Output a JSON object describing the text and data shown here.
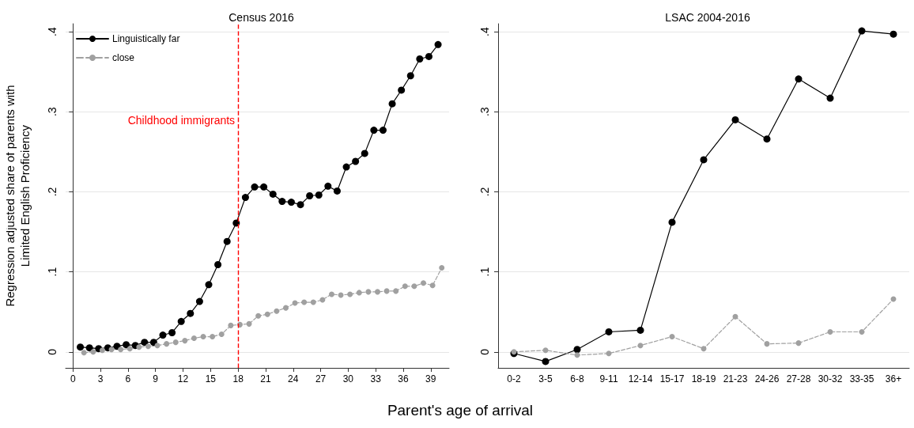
{
  "chart_data": [
    {
      "type": "line",
      "title": "Census 2016",
      "ylabel": "Regression adjusted share of parents with\nLimited English Proficiency",
      "xlabel": "Parent's age of arrival",
      "series": [
        {
          "name": "Linguistically far",
          "color": "#000000",
          "line_style": "solid",
          "x": [
            0.8,
            1.8,
            2.8,
            3.8,
            4.8,
            5.8,
            6.8,
            7.8,
            8.8,
            9.8,
            10.8,
            11.8,
            12.8,
            13.8,
            14.8,
            15.8,
            16.8,
            17.8,
            18.8,
            19.8,
            20.8,
            21.8,
            22.8,
            23.8,
            24.8,
            25.8,
            26.8,
            27.8,
            28.8,
            29.8,
            30.8,
            31.8,
            32.8,
            33.8,
            34.8,
            35.8,
            36.8,
            37.8,
            38.8,
            39.8
          ],
          "values": [
            0.006,
            0.005,
            0.004,
            0.005,
            0.007,
            0.009,
            0.008,
            0.012,
            0.012,
            0.021,
            0.024,
            0.038,
            0.048,
            0.063,
            0.084,
            0.109,
            0.138,
            0.161,
            0.193,
            0.206,
            0.206,
            0.197,
            0.188,
            0.187,
            0.184,
            0.195,
            0.196,
            0.207,
            0.201,
            0.231,
            0.238,
            0.248,
            0.277,
            0.277,
            0.31,
            0.327,
            0.345,
            0.366,
            0.369,
            0.384
          ]
        },
        {
          "name": "close",
          "color": "#a0a0a0",
          "line_style": "dashed",
          "x": [
            1.2,
            2.2,
            3.2,
            4.2,
            5.2,
            6.2,
            7.2,
            8.2,
            9.2,
            10.2,
            11.2,
            12.2,
            13.2,
            14.2,
            15.2,
            16.2,
            17.2,
            18.2,
            19.2,
            20.2,
            21.2,
            22.2,
            23.2,
            24.2,
            25.2,
            26.2,
            27.2,
            28.2,
            29.2,
            30.2,
            31.2,
            32.2,
            33.2,
            34.2,
            35.2,
            36.2,
            37.2,
            38.2,
            39.2,
            40.2
          ],
          "values": [
            -0.001,
            0.0,
            0.002,
            0.003,
            0.003,
            0.004,
            0.006,
            0.007,
            0.008,
            0.01,
            0.012,
            0.014,
            0.017,
            0.019,
            0.019,
            0.022,
            0.033,
            0.034,
            0.035,
            0.045,
            0.047,
            0.051,
            0.055,
            0.061,
            0.062,
            0.062,
            0.065,
            0.072,
            0.071,
            0.072,
            0.074,
            0.075,
            0.075,
            0.076,
            0.076,
            0.082,
            0.082,
            0.086,
            0.083,
            0.105
          ]
        }
      ],
      "xlim": [
        -0.8,
        41
      ],
      "xticks": [
        0,
        3,
        6,
        9,
        12,
        15,
        18,
        21,
        24,
        27,
        30,
        33,
        36,
        39
      ],
      "ylim": [
        -0.02,
        0.41
      ],
      "yticks": [
        0,
        {
          "value": 0.1,
          "label": ".1"
        },
        {
          "value": 0.2,
          "label": ".2"
        },
        {
          "value": 0.3,
          "label": ".3"
        },
        {
          "value": 0.4,
          "label": ".4"
        }
      ],
      "ref_lines": [
        {
          "axis": "x",
          "value": 18,
          "label": "Childhood immigrants",
          "color": "#ff0000",
          "line_style": "dashed"
        }
      ],
      "grid": "y",
      "legend": "top left",
      "marker": "circle"
    },
    {
      "type": "line",
      "title": "LSAC 2004-2016",
      "categories": [
        "0-2",
        "3-5",
        "6-8",
        "9-11",
        "12-14",
        "15-17",
        "18-19",
        "21-23",
        "24-26",
        "27-28",
        "30-32",
        "33-35",
        "36+"
      ],
      "series": [
        {
          "color": "#000000",
          "line_style": "solid",
          "values": [
            -0.002,
            -0.012,
            0.003,
            0.025,
            0.027,
            0.162,
            0.24,
            0.29,
            0.266,
            0.341,
            0.317,
            0.401,
            0.397
          ]
        },
        {
          "color": "#a0a0a0",
          "line_style": "dashed",
          "values": [
            0.0,
            0.002,
            -0.004,
            -0.002,
            0.008,
            0.019,
            0.004,
            0.044,
            0.01,
            0.011,
            0.025,
            0.025,
            0.066
          ]
        }
      ],
      "ylim": [
        -0.02,
        0.41
      ],
      "yticks": [
        0,
        {
          "value": 0.1,
          "label": ".1"
        },
        {
          "value": 0.2,
          "label": ".2"
        },
        {
          "value": 0.3,
          "label": ".3"
        },
        {
          "value": 0.4,
          "label": ".4"
        }
      ],
      "grid": "y",
      "marker": "circle"
    }
  ]
}
